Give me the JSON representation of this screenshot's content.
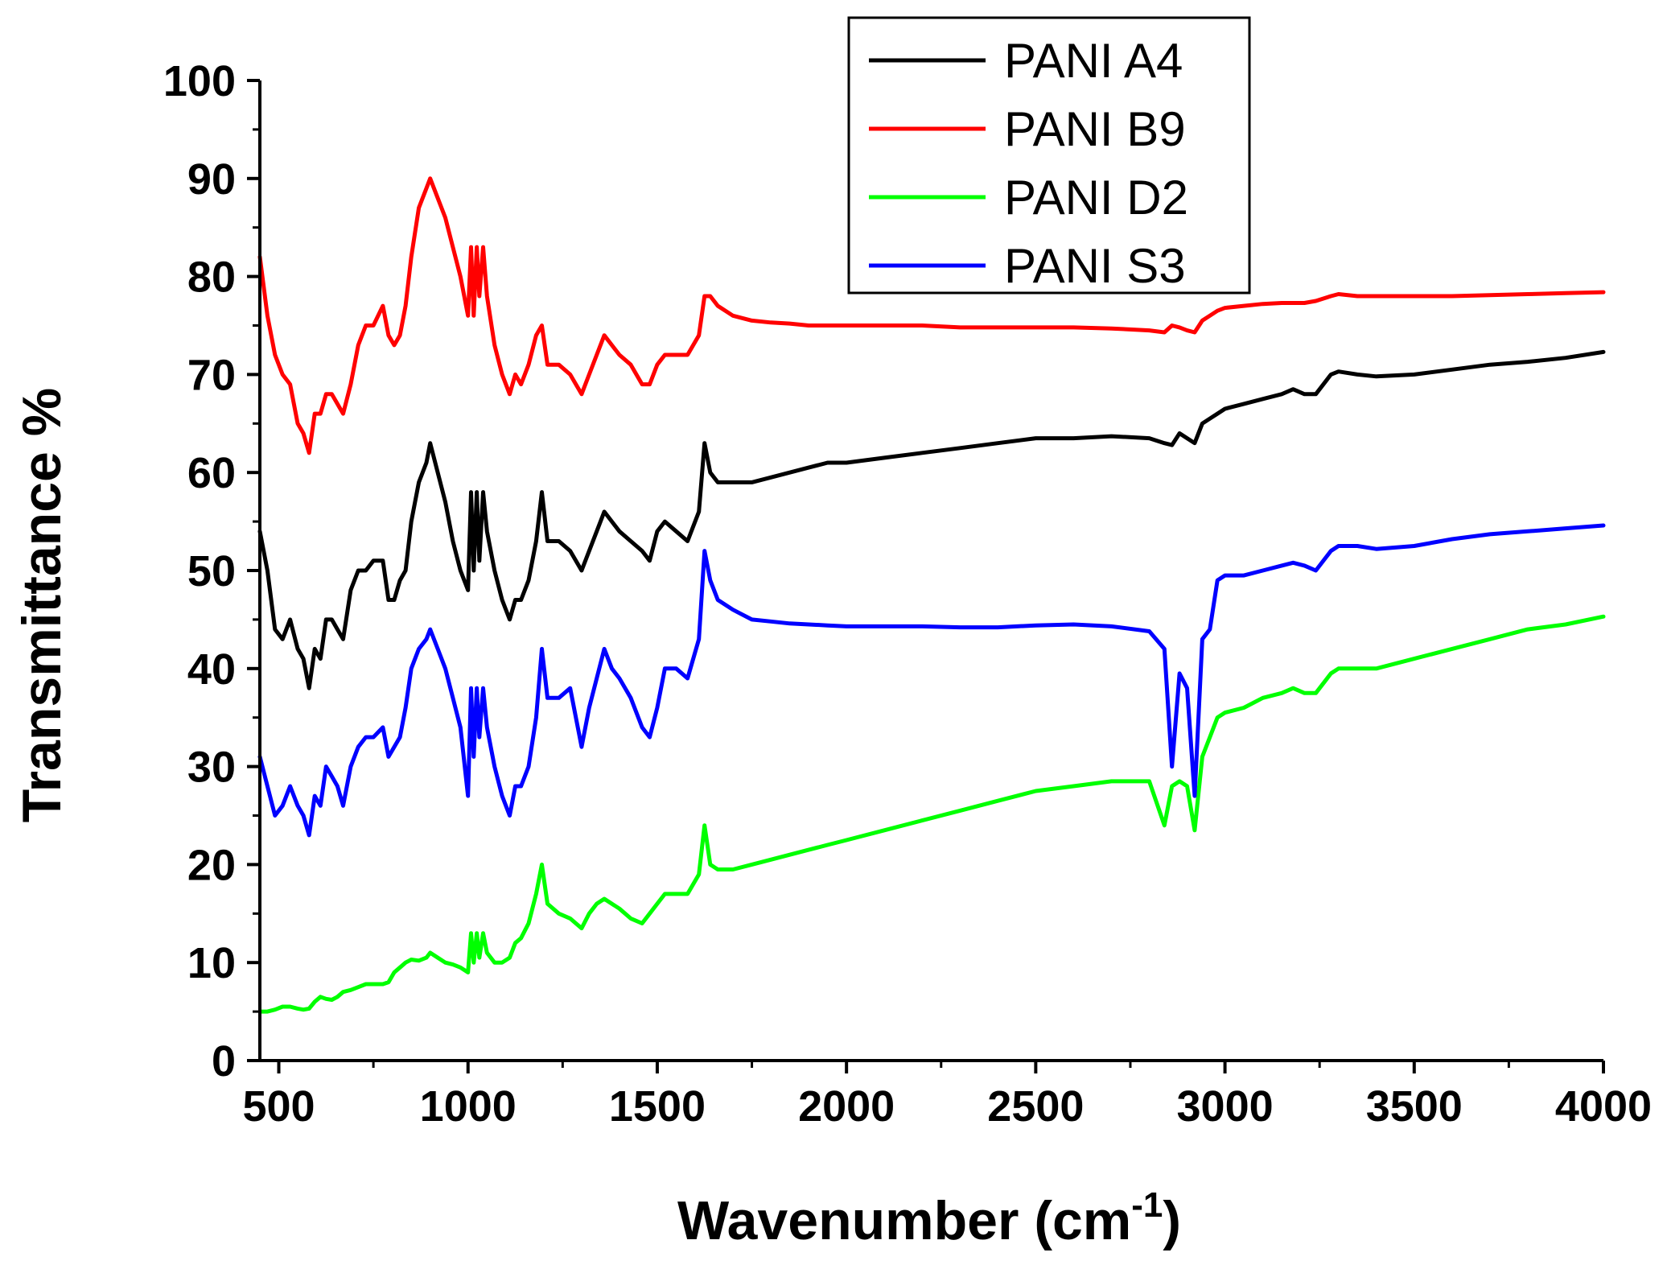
{
  "chart_data": {
    "type": "line",
    "title": "",
    "xlabel": "Wavenumber (cm",
    "xlabel_sup": "-1",
    "xlabel_close": ")",
    "ylabel": "Transmittance %",
    "xlim": [
      450,
      4000
    ],
    "ylim": [
      0,
      100
    ],
    "xticks": [
      500,
      1000,
      1500,
      2000,
      2500,
      3000,
      3500,
      4000
    ],
    "yticks": [
      0,
      10,
      20,
      30,
      40,
      50,
      60,
      70,
      80,
      90,
      100
    ],
    "grid": false,
    "legend_position": "top-right",
    "series": [
      {
        "name": "PANI A4",
        "color": "#000000",
        "x": [
          450,
          470,
          490,
          510,
          530,
          550,
          565,
          580,
          595,
          610,
          625,
          640,
          655,
          670,
          690,
          710,
          730,
          750,
          775,
          790,
          805,
          820,
          835,
          850,
          870,
          890,
          900,
          920,
          940,
          960,
          980,
          1000,
          1008,
          1015,
          1023,
          1030,
          1040,
          1050,
          1070,
          1090,
          1110,
          1125,
          1140,
          1160,
          1180,
          1195,
          1210,
          1240,
          1270,
          1300,
          1320,
          1340,
          1360,
          1380,
          1400,
          1430,
          1460,
          1480,
          1500,
          1520,
          1550,
          1580,
          1610,
          1625,
          1640,
          1660,
          1700,
          1750,
          1800,
          1850,
          1900,
          1950,
          2000,
          2100,
          2200,
          2300,
          2400,
          2500,
          2600,
          2700,
          2800,
          2840,
          2860,
          2880,
          2900,
          2920,
          2940,
          2960,
          2980,
          3000,
          3050,
          3100,
          3150,
          3180,
          3210,
          3240,
          3280,
          3300,
          3350,
          3400,
          3500,
          3600,
          3700,
          3800,
          3900,
          4000
        ],
        "y": [
          54,
          50,
          44,
          43,
          45,
          42,
          41,
          38,
          42,
          41,
          45,
          45,
          44,
          43,
          48,
          50,
          50,
          51,
          51,
          47,
          47,
          49,
          50,
          55,
          59,
          61,
          63,
          60,
          57,
          53,
          50,
          48,
          58,
          50,
          58,
          51,
          58,
          54,
          50,
          47,
          45,
          47,
          47,
          49,
          53,
          58,
          53,
          53,
          52,
          50,
          52,
          54,
          56,
          55,
          54,
          53,
          52,
          51,
          54,
          55,
          54,
          53,
          56,
          63,
          60,
          59,
          59,
          59,
          59.5,
          60,
          60.5,
          61,
          61,
          61.5,
          62,
          62.5,
          63,
          63.5,
          63.5,
          63.7,
          63.5,
          63,
          62.8,
          64,
          63.5,
          63,
          65,
          65.5,
          66,
          66.5,
          67,
          67.5,
          68,
          68.5,
          68,
          68,
          70,
          70.3,
          70,
          69.8,
          70,
          70.5,
          71,
          71.3,
          71.7,
          72.3
        ]
      },
      {
        "name": "PANI B9",
        "color": "#ff0000",
        "x": [
          450,
          470,
          490,
          510,
          530,
          550,
          565,
          580,
          595,
          610,
          625,
          640,
          655,
          670,
          690,
          710,
          730,
          750,
          775,
          790,
          805,
          820,
          835,
          850,
          870,
          890,
          900,
          920,
          940,
          960,
          980,
          1000,
          1008,
          1015,
          1023,
          1030,
          1040,
          1050,
          1070,
          1090,
          1110,
          1125,
          1140,
          1160,
          1180,
          1195,
          1210,
          1240,
          1270,
          1300,
          1320,
          1340,
          1360,
          1380,
          1400,
          1430,
          1460,
          1480,
          1500,
          1520,
          1550,
          1580,
          1610,
          1625,
          1640,
          1660,
          1700,
          1750,
          1800,
          1850,
          1900,
          1950,
          2000,
          2100,
          2200,
          2300,
          2400,
          2500,
          2600,
          2700,
          2800,
          2840,
          2860,
          2880,
          2900,
          2920,
          2940,
          2960,
          2980,
          3000,
          3050,
          3100,
          3150,
          3180,
          3210,
          3240,
          3280,
          3300,
          3350,
          3400,
          3500,
          3600,
          3700,
          3800,
          3900,
          4000
        ],
        "y": [
          82,
          76,
          72,
          70,
          69,
          65,
          64,
          62,
          66,
          66,
          68,
          68,
          67,
          66,
          69,
          73,
          75,
          75,
          77,
          74,
          73,
          74,
          77,
          82,
          87,
          89,
          90,
          88,
          86,
          83,
          80,
          76,
          83,
          76,
          83,
          78,
          83,
          78,
          73,
          70,
          68,
          70,
          69,
          71,
          74,
          75,
          71,
          71,
          70,
          68,
          70,
          72,
          74,
          73,
          72,
          71,
          69,
          69,
          71,
          72,
          72,
          72,
          74,
          78,
          78,
          77,
          76,
          75.5,
          75.3,
          75.2,
          75,
          75,
          75,
          75,
          75,
          74.8,
          74.8,
          74.8,
          74.8,
          74.7,
          74.5,
          74.3,
          75,
          74.8,
          74.5,
          74.3,
          75.5,
          76,
          76.5,
          76.8,
          77,
          77.2,
          77.3,
          77.3,
          77.3,
          77.5,
          78,
          78.2,
          78,
          78,
          78,
          78,
          78.1,
          78.2,
          78.3,
          78.4
        ]
      },
      {
        "name": "PANI D2",
        "color": "#00ff00",
        "x": [
          450,
          470,
          490,
          510,
          530,
          550,
          565,
          580,
          595,
          610,
          625,
          640,
          655,
          670,
          690,
          710,
          730,
          750,
          775,
          790,
          805,
          820,
          835,
          850,
          870,
          890,
          900,
          920,
          940,
          960,
          980,
          1000,
          1008,
          1015,
          1023,
          1030,
          1040,
          1050,
          1070,
          1090,
          1110,
          1125,
          1140,
          1160,
          1180,
          1195,
          1210,
          1240,
          1270,
          1300,
          1320,
          1340,
          1360,
          1380,
          1400,
          1430,
          1460,
          1480,
          1500,
          1520,
          1550,
          1580,
          1610,
          1625,
          1640,
          1660,
          1700,
          1750,
          1800,
          1850,
          1900,
          1950,
          2000,
          2100,
          2200,
          2300,
          2400,
          2500,
          2600,
          2700,
          2800,
          2840,
          2860,
          2880,
          2900,
          2920,
          2940,
          2960,
          2980,
          3000,
          3050,
          3100,
          3150,
          3180,
          3210,
          3240,
          3280,
          3300,
          3350,
          3400,
          3500,
          3600,
          3700,
          3800,
          3900,
          4000
        ],
        "y": [
          5,
          5,
          5.2,
          5.5,
          5.5,
          5.3,
          5.2,
          5.3,
          6,
          6.5,
          6.3,
          6.2,
          6.5,
          7,
          7.2,
          7.5,
          7.8,
          7.8,
          7.8,
          8,
          9,
          9.5,
          10,
          10.3,
          10.2,
          10.5,
          11,
          10.5,
          10,
          9.8,
          9.5,
          9,
          13,
          10,
          13,
          10.5,
          13,
          11,
          10,
          10,
          10.5,
          12,
          12.5,
          14,
          17,
          20,
          16,
          15,
          14.5,
          13.5,
          15,
          16,
          16.5,
          16,
          15.5,
          14.5,
          14,
          15,
          16,
          17,
          17,
          17,
          19,
          24,
          20,
          19.5,
          19.5,
          20,
          20.5,
          21,
          21.5,
          22,
          22.5,
          23.5,
          24.5,
          25.5,
          26.5,
          27.5,
          28,
          28.5,
          28.5,
          24,
          28,
          28.5,
          28,
          23.5,
          31,
          33,
          35,
          35.5,
          36,
          37,
          37.5,
          38,
          37.5,
          37.5,
          39.5,
          40,
          40,
          40,
          41,
          42,
          43,
          44,
          44.5,
          45.3
        ]
      },
      {
        "name": "PANI S3",
        "color": "#0000ff",
        "x": [
          450,
          470,
          490,
          510,
          530,
          550,
          565,
          580,
          595,
          610,
          625,
          640,
          655,
          670,
          690,
          710,
          730,
          750,
          775,
          790,
          805,
          820,
          835,
          850,
          870,
          890,
          900,
          920,
          940,
          960,
          980,
          1000,
          1008,
          1015,
          1023,
          1030,
          1040,
          1050,
          1070,
          1090,
          1110,
          1125,
          1140,
          1160,
          1180,
          1195,
          1210,
          1240,
          1270,
          1300,
          1320,
          1340,
          1360,
          1380,
          1400,
          1430,
          1460,
          1480,
          1500,
          1520,
          1550,
          1580,
          1610,
          1625,
          1640,
          1660,
          1700,
          1750,
          1800,
          1850,
          1900,
          1950,
          2000,
          2100,
          2200,
          2300,
          2400,
          2500,
          2600,
          2700,
          2800,
          2840,
          2860,
          2880,
          2900,
          2920,
          2940,
          2960,
          2980,
          3000,
          3050,
          3100,
          3150,
          3180,
          3210,
          3240,
          3280,
          3300,
          3350,
          3400,
          3500,
          3600,
          3700,
          3800,
          3900,
          4000
        ],
        "y": [
          31,
          28,
          25,
          26,
          28,
          26,
          25,
          23,
          27,
          26,
          30,
          29,
          28,
          26,
          30,
          32,
          33,
          33,
          34,
          31,
          32,
          33,
          36,
          40,
          42,
          43,
          44,
          42,
          40,
          37,
          34,
          27,
          38,
          31,
          38,
          33,
          38,
          34,
          30,
          27,
          25,
          28,
          28,
          30,
          35,
          42,
          37,
          37,
          38,
          32,
          36,
          39,
          42,
          40,
          39,
          37,
          34,
          33,
          36,
          40,
          40,
          39,
          43,
          52,
          49,
          47,
          46,
          45,
          44.8,
          44.6,
          44.5,
          44.4,
          44.3,
          44.3,
          44.3,
          44.2,
          44.2,
          44.4,
          44.5,
          44.3,
          43.8,
          42,
          30,
          39.5,
          38,
          27,
          43,
          44,
          49,
          49.5,
          49.5,
          50,
          50.5,
          50.8,
          50.5,
          50,
          52,
          52.5,
          52.5,
          52.2,
          52.5,
          53.2,
          53.7,
          54,
          54.3,
          54.6
        ]
      }
    ]
  }
}
